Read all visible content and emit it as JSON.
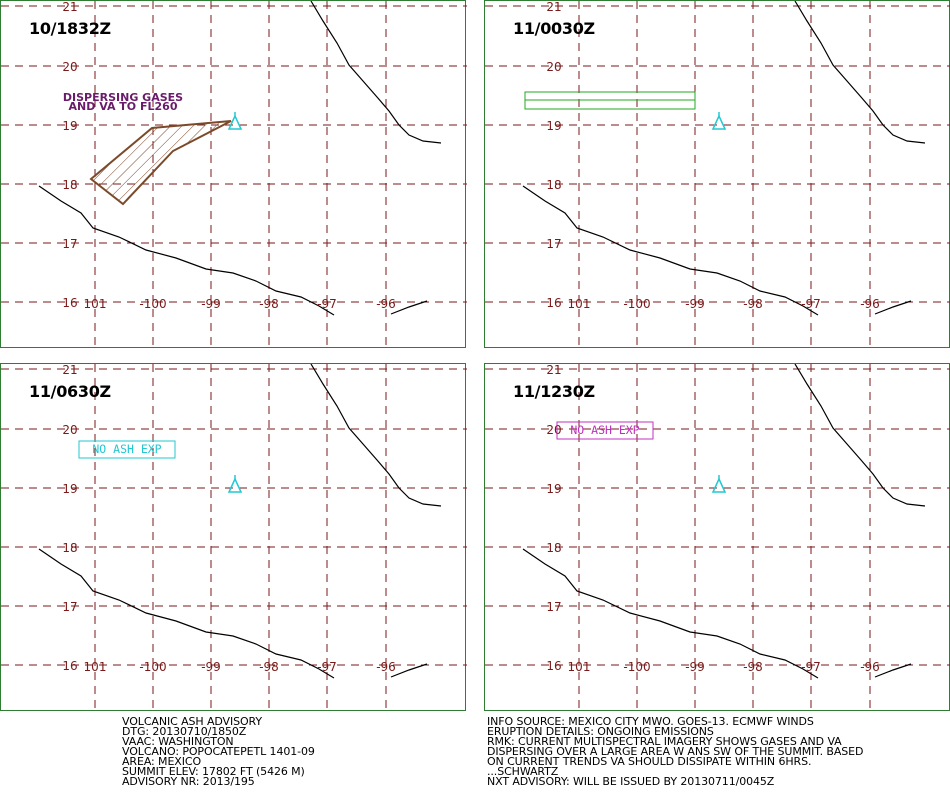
{
  "panels": [
    {
      "id": "p1",
      "time": "10/1832Z",
      "label_lines": [
        "DISPERSING GASES",
        "AND VA TO FL260"
      ],
      "label_color": "#6a1b6a",
      "ash_polygon": true,
      "ash_color": "#7b4a2a"
    },
    {
      "id": "p2",
      "time": "11/0030Z",
      "outlook_box": true,
      "outlook_color": "#22aa22"
    },
    {
      "id": "p3",
      "time": "11/0630Z",
      "box_label": "NO ASH EXP",
      "box_color": "#22c8d2"
    },
    {
      "id": "p4",
      "time": "11/1230Z",
      "box_label": "NO ASH EXP",
      "box_color": "#c030c0"
    }
  ],
  "map": {
    "lat_labels": [
      "21",
      "20",
      "19",
      "18",
      "17",
      "16"
    ],
    "lon_labels": [
      "101",
      "-100",
      "-99",
      "-98",
      "-97",
      "-96"
    ],
    "grid_color": "#7a1a1a",
    "coast_color": "#000000",
    "volcano_color": "#22c8d2",
    "volcano_icon": "volcano-triangle-icon"
  },
  "advisory_left": [
    "VOLCANIC ASH ADVISORY",
    "DTG: 20130710/1850Z",
    "VAAC: WASHINGTON",
    "VOLCANO: POPOCATEPETL 1401-09",
    "AREA: MEXICO",
    "SUMMIT ELEV: 17802 FT (5426 M)",
    "ADVISORY NR: 2013/195"
  ],
  "advisory_right": [
    "INFO SOURCE: MEXICO CITY MWO. GOES-13. ECMWF WINDS",
    "ERUPTION DETAILS: ONGOING EMISSIONS",
    "RMK: CURRENT MULTISPECTRAL IMAGERY SHOWS GASES AND VA",
    "DISPERSING OVER A LARGE AREA W ANS SW OF THE SUMMIT. BASED",
    "ON CURRENT TRENDS VA SHOULD DISSIPATE WITHIN 6HRS.",
    "...SCHWARTZ",
    "NXT ADVISORY: WILL BE ISSUED BY 20130711/0045Z"
  ]
}
